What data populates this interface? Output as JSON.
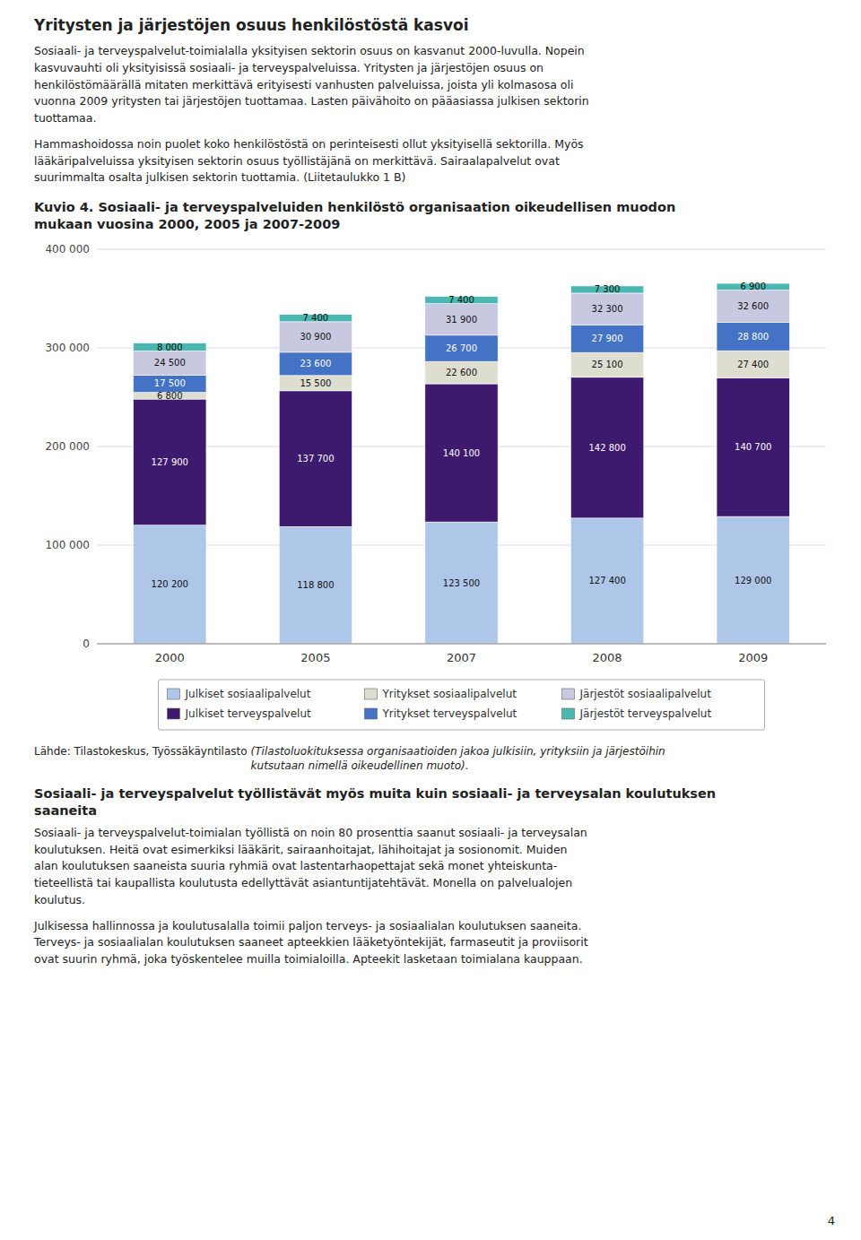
{
  "title": "Yritysten ja järjestöjen osuus henkilöstöstä kasvoi",
  "paragraphs": [
    "Sosiaali- ja terveyspalvelut-toimialalla yksityisen sektorin osuus on kasvanut 2000-luvulla. Nopein\nkasvuvauhti oli yksityisissä sosiaali- ja terveyspalveluissa. Yritysten ja järjestöjen osuus on\nhenkilöstömäärällä mitaten merkittävä erityisesti vanhusten palveluissa, joista yli kolmasosa oli\nvuonna 2009 yritysten tai järjestöjen tuottamaa. Lasten päivähoito on pääasiassa julkisen sektorin\ntuottamaa.",
    "Hammashoidossa noin puolet koko henkilöstöstä on perinteisesti ollut yksityisellä sektorilla. Myös\nlääkäripalveluissa yksityisen sektorin osuus työllistäjänä on merkittävä. Sairaalapalvelut ovat\nsuurimmalta osalta julkisen sektorin tuottamia. (Liitetaulukko 1 B)"
  ],
  "chart_data": {
    "type": "bar",
    "title": "Kuvio 4. Sosiaali- ja terveyspalveluiden henkilöstö organisaation oikeudellisen muodon\nmukaan vuosina 2000, 2005 ja 2007-2009",
    "categories": [
      "2000",
      "2005",
      "2007",
      "2008",
      "2009"
    ],
    "stacked": true,
    "grid": true,
    "legend": "bottom",
    "data_labels": true,
    "ylim": [
      0,
      400000
    ],
    "yticks": [
      0,
      {
        "value": 100000,
        "label": "100 000"
      },
      {
        "value": 200000,
        "label": "200 000"
      },
      {
        "value": 300000,
        "label": "300 000"
      },
      {
        "value": 400000,
        "label": "400 000"
      }
    ],
    "series": [
      {
        "name": "Julkiset sosiaalipalvelut",
        "color": "#aec6e8",
        "values": [
          120200,
          118800,
          123500,
          127400,
          129000
        ],
        "value_labels": [
          "120 200",
          "118 800",
          "123 500",
          "127 400",
          "129 000"
        ]
      },
      {
        "name": "Julkiset terveyspalvelut",
        "color": "#3d1a6e",
        "values": [
          127900,
          137700,
          140100,
          142800,
          140700
        ],
        "value_labels": [
          "127 900",
          "137 700",
          "140 100",
          "142 800",
          "140 700"
        ]
      },
      {
        "name": "Yritykset sosiaalipalvelut",
        "color": "#deded0",
        "values": [
          6800,
          15500,
          22600,
          25100,
          27400
        ],
        "value_labels": [
          "6 800",
          "15 500",
          "22 600",
          "25 100",
          "27 400"
        ]
      },
      {
        "name": "Yritykset terveyspalvelut",
        "color": "#4472c4",
        "values": [
          17500,
          23600,
          26700,
          27900,
          28800
        ],
        "value_labels": [
          "17 500",
          "23 600",
          "26 700",
          "27 900",
          "28 800"
        ]
      },
      {
        "name": "Järjestöt sosiaalipalvelut",
        "color": "#c8c8e0",
        "values": [
          24500,
          30900,
          31900,
          32300,
          32600
        ],
        "value_labels": [
          "24 500",
          "30 900",
          "31 900",
          "32 300",
          "32 600"
        ]
      },
      {
        "name": "Järjestöt terveyspalvelut",
        "color": "#4ab8b0",
        "values": [
          8000,
          7400,
          7400,
          7300,
          6900
        ],
        "value_labels": [
          "8 000",
          "7 400",
          "7 400",
          "7 300",
          "6 900"
        ]
      }
    ]
  },
  "source": "Lähde: Tilastokeskus, Työssäkäyntilasto",
  "source_note": "(Tilastoluokituksessa organisaatioiden jakoa julkisiin, yrityksiin ja järjestöihin\nkutsutaan nimellä oikeudellinen muoto).",
  "section_title": "Sosiaali- ja terveyspalvelut työllistävät myös muita kuin sosiaali- ja terveysalan koulutuksen\nsaaneita",
  "section_paragraphs": [
    "Sosiaali- ja terveyspalvelut-toimialan työllistä on noin 80 prosenttia saanut sosiaali- ja terveysalan\nkoulutuksen. Heitä ovat esimerkiksi lääkärit, sairaanhoitajat, lähihoitajat ja sosionomit. Muiden\nalan koulutuksen saaneista suuria ryhmiä ovat lastentarhaopettajat sekä monet yhteiskunta-\ntieteellistä tai kaupallista koulutusta edellyttävät asiantuntijatehtävät. Monella on palvelualojen\nkoulutus.",
    "Julkisessa hallinnossa ja koulutusalalla toimii paljon terveys- ja sosiaalialan koulutuksen saaneita.\nTerveys- ja sosiaalialan koulutuksen saaneet apteekkien lääketyöntekijät, farmaseutit ja proviisorit\novat suurin ryhmä, joka työskentelee muilla toimialoilla. Apteekit lasketaan toimialana kauppaan."
  ],
  "page_number": "4"
}
